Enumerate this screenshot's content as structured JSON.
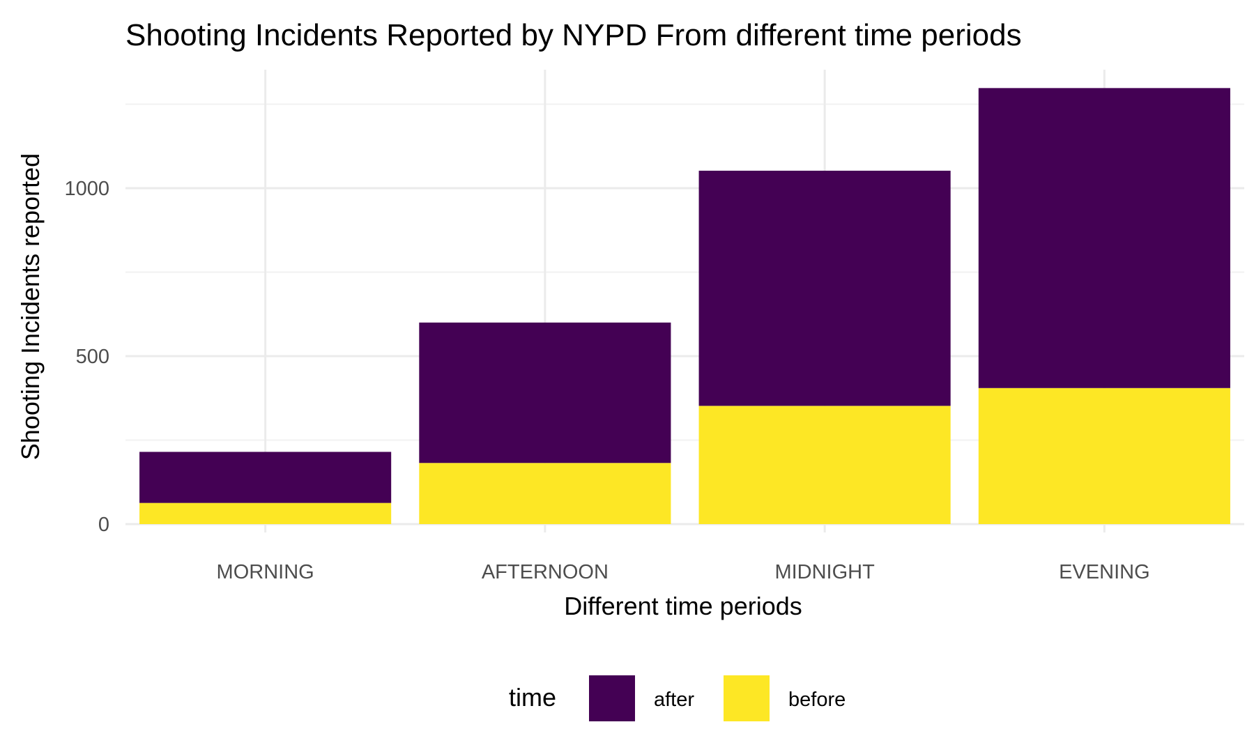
{
  "chart_data": {
    "type": "bar",
    "stacked": true,
    "title": "Shooting Incidents Reported by NYPD From different time periods",
    "xlabel": "Different time periods",
    "ylabel": "Shooting Incidents reported",
    "categories": [
      "MORNING",
      "AFTERNOON",
      "MIDNIGHT",
      "EVENING"
    ],
    "series": [
      {
        "name": "before",
        "color": "#FDE725",
        "values": [
          63,
          182,
          352,
          405
        ]
      },
      {
        "name": "after",
        "color": "#440154",
        "values": [
          152,
          418,
          700,
          893
        ]
      }
    ],
    "ylim": [
      0,
      1300
    ],
    "yticks": [
      0,
      500,
      1000
    ],
    "ytick_labels": [
      "0",
      "500",
      "1000"
    ],
    "grid": true,
    "legend": {
      "title": "time",
      "position": "bottom",
      "order": [
        "after",
        "before"
      ]
    }
  }
}
